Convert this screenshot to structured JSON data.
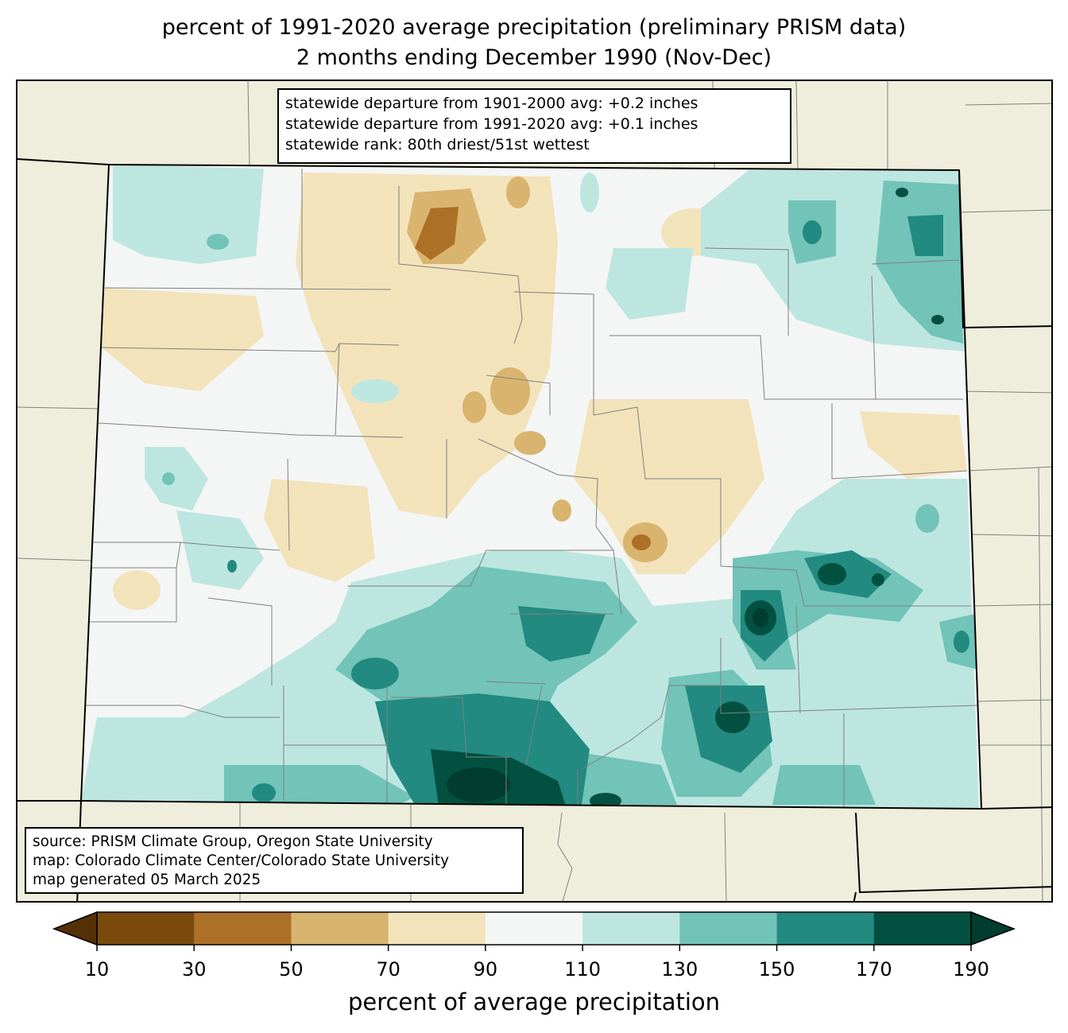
{
  "title_line1": "percent of 1991-2020 average precipitation (preliminary PRISM data)",
  "title_line2": "2 months ending December 1990 (Nov-Dec)",
  "stats": {
    "line1": "statewide departure from 1901-2000 avg: +0.2 inches",
    "line2": "statewide departure from 1991-2020 avg: +0.1 inches",
    "line3": "statewide rank: 80th driest/51st wettest"
  },
  "source": {
    "line1": "source: PRISM Climate Group, Oregon State University",
    "line2": "map: Colorado Climate Center/Colorado State University",
    "line3": "map generated 05 March 2025"
  },
  "colorbar": {
    "label": "percent of average precipitation",
    "ticks": [
      "10",
      "30",
      "50",
      "70",
      "90",
      "110",
      "130",
      "150",
      "170",
      "190"
    ],
    "colors": {
      "under": "#543005",
      "bins": [
        "#7a4a0c",
        "#ac7026",
        "#d9b46e",
        "#f3e3bb",
        "#f4f5f5",
        "#bde6e1",
        "#72c3b8",
        "#228a80",
        "#02503f"
      ],
      "over": "#003c30"
    }
  },
  "map": {
    "background_color": "#efeedc",
    "state_border_color": "#000000",
    "county_line_color": "#808080"
  }
}
